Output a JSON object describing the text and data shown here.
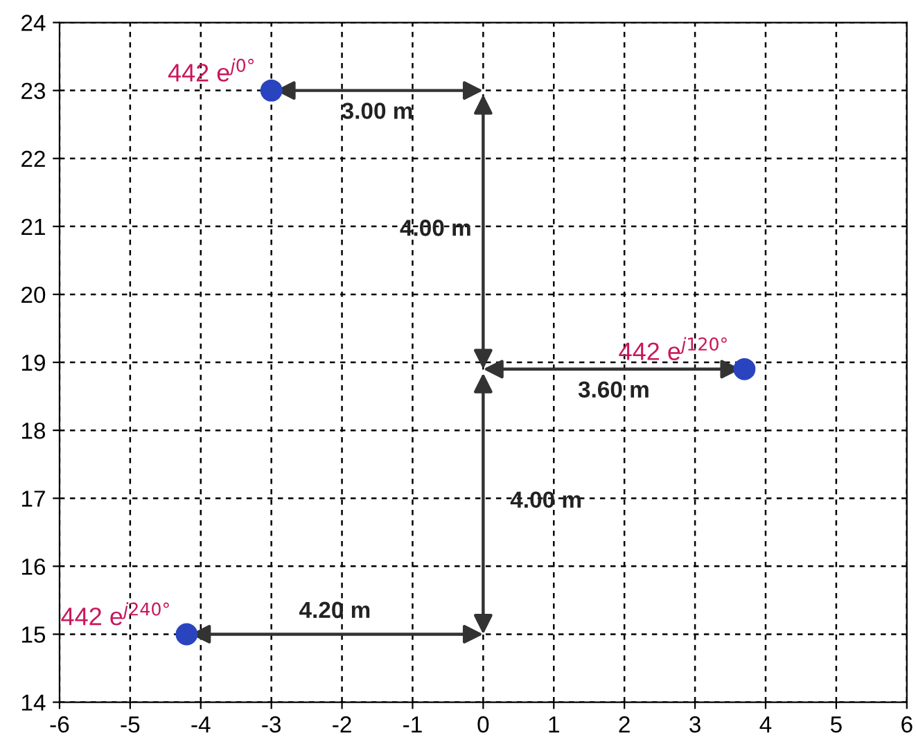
{
  "chart_data": {
    "type": "scatter",
    "xlim": [
      -6,
      6
    ],
    "ylim": [
      14,
      24
    ],
    "xticks": [
      -6,
      -5,
      -4,
      -3,
      -2,
      -1,
      0,
      1,
      2,
      3,
      4,
      5,
      6
    ],
    "yticks": [
      14,
      15,
      16,
      17,
      18,
      19,
      20,
      21,
      22,
      23,
      24
    ],
    "grid": true,
    "marker": "circle",
    "series": [
      {
        "color": "#2a44c0",
        "x": [
          -3,
          3.7,
          -4.2
        ],
        "values": [
          23,
          18.9,
          15
        ]
      }
    ],
    "annotations": [
      {
        "text": "442 e$^{j0°}$",
        "x": -3,
        "y": 23
      },
      {
        "text": "442 e$^{j120°}$",
        "x": 3.7,
        "y": 18.9
      },
      {
        "text": "442 e$^{j240°}$",
        "x": -4.2,
        "y": 15
      },
      "3.00 m",
      "4.00 m",
      "3.60 m",
      "4.00 m",
      "4.20 m"
    ]
  }
}
